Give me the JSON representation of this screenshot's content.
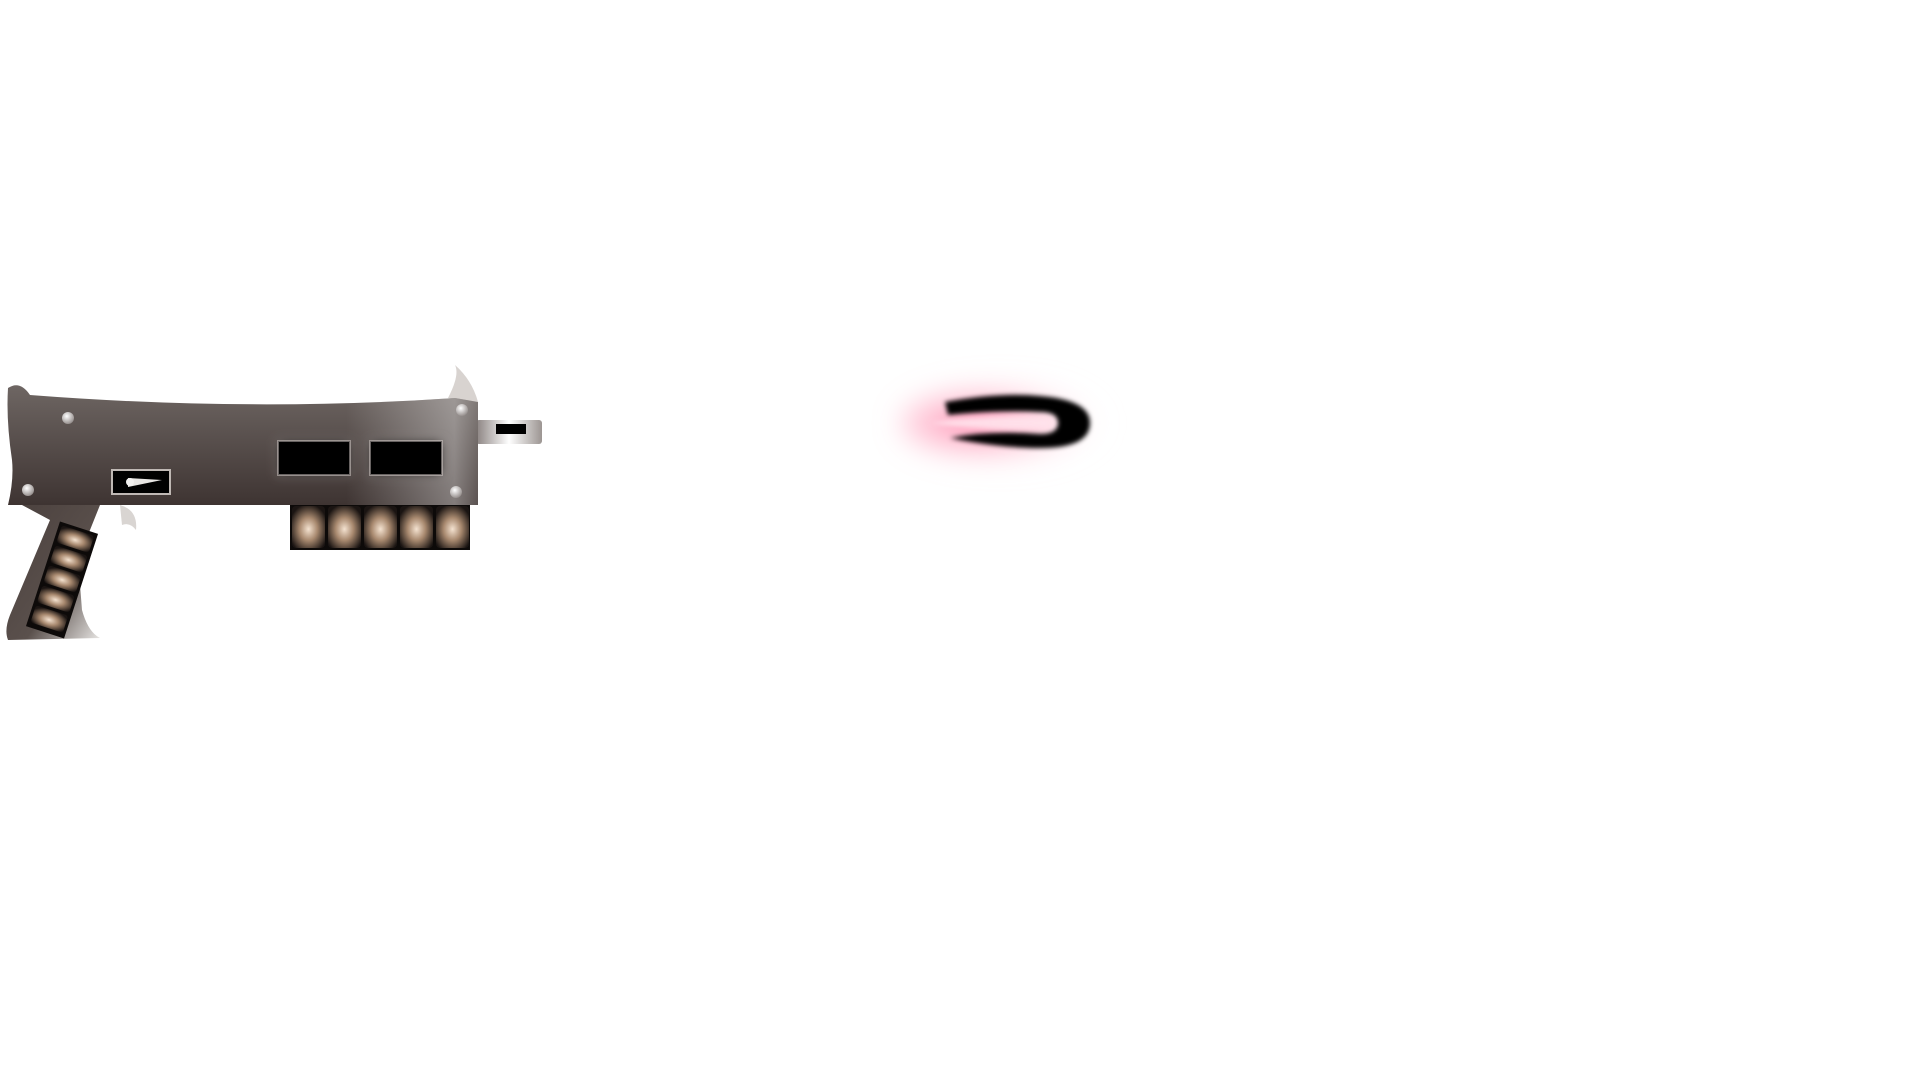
{
  "scene": {
    "background_color": "#ffffff",
    "objects": [
      {
        "name": "blaster-gun",
        "description_icon": "gun-icon"
      },
      {
        "name": "plasma-projectile",
        "description_icon": "projectile-icon"
      }
    ]
  },
  "colors": {
    "gun_body_top": "#6e6663",
    "gun_body_bottom": "#3e3432",
    "gun_body_highlight": "#a69e99",
    "gun_dark": "#000000",
    "gun_metal_light": "#f2f0ef",
    "gun_rivet": "#e8e6e4",
    "gun_ammo_glow": "#e9d4c2",
    "projectile_core": "#000000",
    "projectile_glow": "#ff6b9a",
    "projectile_inner": "#ffe3ec"
  },
  "gun": {
    "ammo_cells_on_body": 5,
    "ammo_cells_on_grip": 5,
    "vent_slots": 2
  }
}
